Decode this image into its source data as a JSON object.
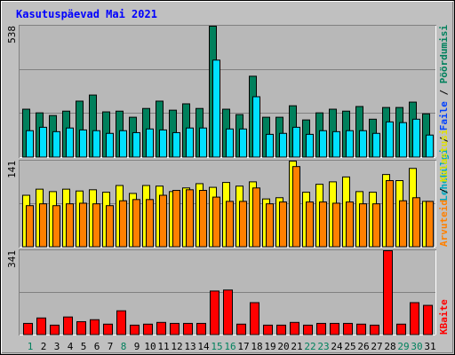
{
  "title": "Kasutuspäevad Mai 2021",
  "chart_data": [
    {
      "type": "bar",
      "ylim": [
        0,
        538
      ],
      "yticks": [
        538
      ],
      "legend": [
        {
          "text": "Lehekülgi",
          "color": "#00a8c0"
        },
        {
          "text": "Faile",
          "color": "#0040ff"
        },
        {
          "text": "Pöördumisi",
          "color": "#00805c"
        }
      ],
      "legend_separator": "/",
      "series": [
        {
          "color": "#00805c",
          "values": [
            198,
            183,
            172,
            190,
            231,
            256,
            187,
            190,
            165,
            201,
            231,
            194,
            220,
            201,
            538,
            198,
            176,
            333,
            165,
            165,
            212,
            154,
            183,
            198,
            190,
            209,
            157,
            205,
            205,
            227,
            179
          ]
        },
        {
          "color": "#00e0ff",
          "values": [
            110,
            124,
            106,
            121,
            113,
            110,
            99,
            110,
            102,
            117,
            113,
            102,
            121,
            121,
            399,
            117,
            117,
            249,
            95,
            99,
            124,
            95,
            110,
            106,
            110,
            110,
            99,
            146,
            143,
            157,
            92
          ]
        }
      ]
    },
    {
      "type": "bar",
      "ylim": [
        0,
        141
      ],
      "yticks": [
        141
      ],
      "legend": [
        {
          "text": "Arvuteid",
          "color": "#ff8000"
        },
        {
          "text": "Külastusi",
          "color": "#e0e000"
        }
      ],
      "legend_separator": "/",
      "series": [
        {
          "color": "#ffff00",
          "values": [
            85,
            95,
            91,
            95,
            92,
            94,
            90,
            101,
            88,
            101,
            100,
            91,
            97,
            104,
            98,
            106,
            100,
            107,
            79,
            81,
            141,
            90,
            103,
            107,
            115,
            91,
            90,
            119,
            109,
            129,
            75
          ]
        },
        {
          "color": "#ff8000",
          "values": [
            68,
            71,
            68,
            71,
            72,
            71,
            68,
            76,
            78,
            78,
            85,
            93,
            94,
            93,
            82,
            75,
            75,
            97,
            71,
            74,
            132,
            74,
            74,
            72,
            74,
            71,
            71,
            109,
            76,
            81,
            75
          ]
        }
      ]
    },
    {
      "type": "bar",
      "ylim": [
        0,
        341
      ],
      "yticks": [
        341
      ],
      "legend": [
        {
          "text": "KBaite",
          "color": "#ff0000"
        }
      ],
      "categories": [
        "1",
        "2",
        "3",
        "4",
        "5",
        "6",
        "7",
        "8",
        "9",
        "10",
        "11",
        "12",
        "13",
        "14",
        "15",
        "16",
        "17",
        "18",
        "19",
        "20",
        "21",
        "22",
        "23",
        "24",
        "25",
        "26",
        "27",
        "28",
        "29",
        "30",
        "31"
      ],
      "category_colors": [
        "#00805c",
        "#000000",
        "#000000",
        "#000000",
        "#000000",
        "#000000",
        "#000000",
        "#00805c",
        "#000000",
        "#000000",
        "#000000",
        "#000000",
        "#000000",
        "#000000",
        "#00805c",
        "#00805c",
        "#000000",
        "#000000",
        "#000000",
        "#000000",
        "#000000",
        "#00805c",
        "#00805c",
        "#000000",
        "#000000",
        "#000000",
        "#000000",
        "#000000",
        "#00805c",
        "#00805c",
        "#000000"
      ],
      "series": [
        {
          "color": "#ff0000",
          "values": [
            47,
            69,
            40,
            73,
            54,
            62,
            44,
            98,
            40,
            44,
            51,
            47,
            47,
            47,
            178,
            182,
            44,
            131,
            40,
            40,
            51,
            40,
            47,
            47,
            47,
            44,
            40,
            341,
            44,
            131,
            120
          ]
        }
      ]
    }
  ]
}
